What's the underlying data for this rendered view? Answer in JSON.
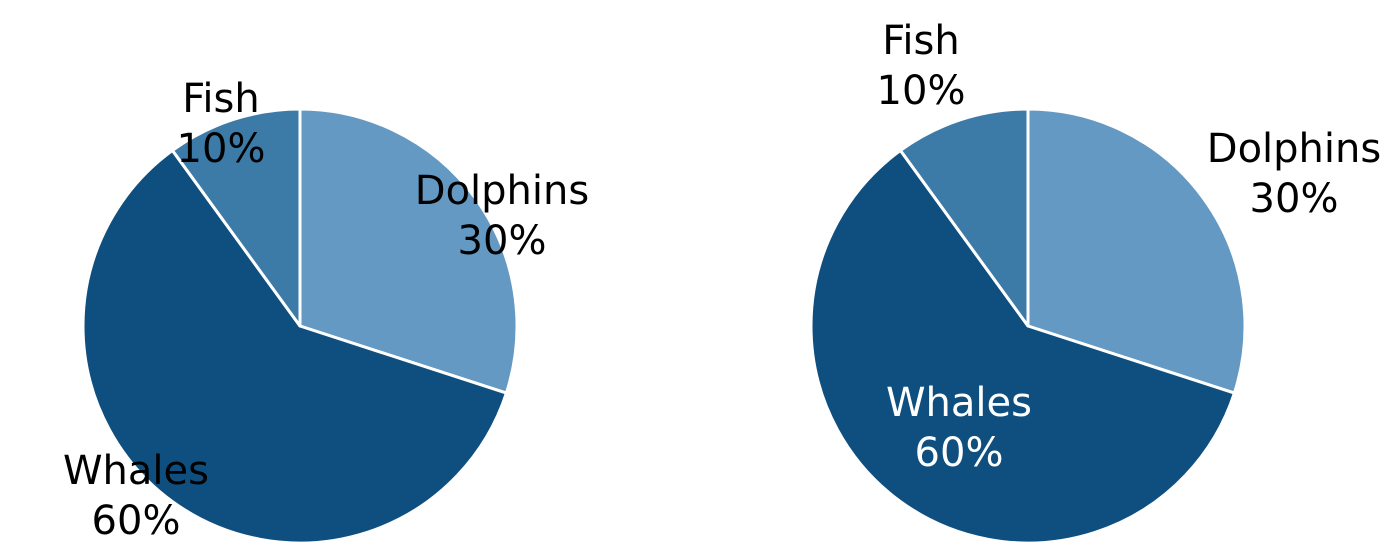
{
  "chart_data": [
    {
      "type": "pie",
      "title": "",
      "categories": [
        "Dolphins",
        "Whales",
        "Fish"
      ],
      "values": [
        30,
        60,
        10
      ],
      "value_labels": [
        "30%",
        "60%",
        "10%"
      ],
      "colors": [
        "#6399c2",
        "#0f4f7f",
        "#3c7aa7"
      ],
      "label_color": "#000000",
      "label_placement": "boundary",
      "start_angle_deg": 0,
      "direction": "clockwise"
    },
    {
      "type": "pie",
      "title": "",
      "categories": [
        "Dolphins",
        "Whales",
        "Fish"
      ],
      "values": [
        30,
        60,
        10
      ],
      "value_labels": [
        "30%",
        "60%",
        "10%"
      ],
      "colors": [
        "#6399c2",
        "#0f4f7f",
        "#3c7aa7"
      ],
      "label_colors": [
        "#000000",
        "#ffffff",
        "#000000"
      ],
      "label_placement": "outside-or-inside",
      "start_angle_deg": 0,
      "direction": "clockwise"
    }
  ]
}
